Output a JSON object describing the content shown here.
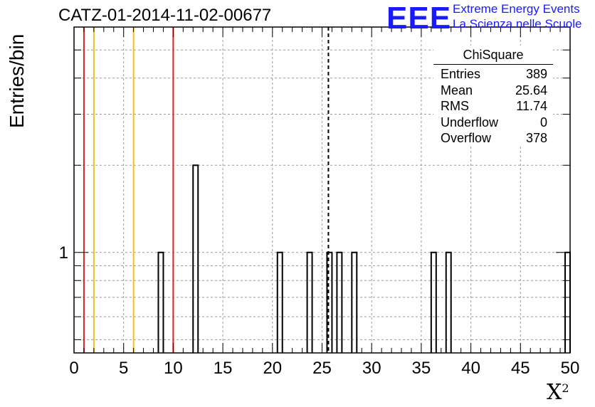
{
  "title": "CATZ-01-2014-11-02-00677",
  "logo": {
    "mark": "EEE",
    "line1": "Extreme Energy Events",
    "line2": "La Scienza nelle Scuole"
  },
  "chart_data": {
    "type": "bar",
    "xlabel": "X",
    "xlabel_sup": "2",
    "ylabel": "Entries/bin",
    "xlim": [
      0,
      50
    ],
    "ylim": [
      0.45,
      6
    ],
    "y_log_scale": true,
    "grid": true,
    "x_ticks": [
      "0",
      "5",
      "10",
      "15",
      "20",
      "25",
      "30",
      "35",
      "40",
      "45",
      "50"
    ],
    "y_ticks": [
      "1"
    ],
    "bin_width": 0.5,
    "bins": [
      {
        "x": 8.5,
        "value": 1
      },
      {
        "x": 12.0,
        "value": 2
      },
      {
        "x": 20.5,
        "value": 1
      },
      {
        "x": 23.5,
        "value": 1
      },
      {
        "x": 25.5,
        "value": 1
      },
      {
        "x": 26.5,
        "value": 1
      },
      {
        "x": 28.0,
        "value": 1
      },
      {
        "x": 36.0,
        "value": 1
      },
      {
        "x": 37.5,
        "value": 1
      },
      {
        "x": 49.5,
        "value": 1
      }
    ],
    "vertical_lines": [
      {
        "x": 1,
        "color": "#dd2222",
        "style": "solid"
      },
      {
        "x": 2,
        "color": "#f0c020",
        "style": "solid"
      },
      {
        "x": 6,
        "color": "#f0c020",
        "style": "solid"
      },
      {
        "x": 10,
        "color": "#dd2222",
        "style": "solid"
      },
      {
        "x": 25.64,
        "color": "#000000",
        "style": "dashed"
      }
    ],
    "legend_position": "top-right"
  },
  "stats": {
    "title": "ChiSquare",
    "rows": [
      {
        "label": "Entries",
        "value": "389"
      },
      {
        "label": "Mean",
        "value": "25.64"
      },
      {
        "label": "RMS",
        "value": "11.74"
      },
      {
        "label": "Underflow",
        "value": "0"
      },
      {
        "label": "Overflow",
        "value": "378"
      }
    ]
  }
}
